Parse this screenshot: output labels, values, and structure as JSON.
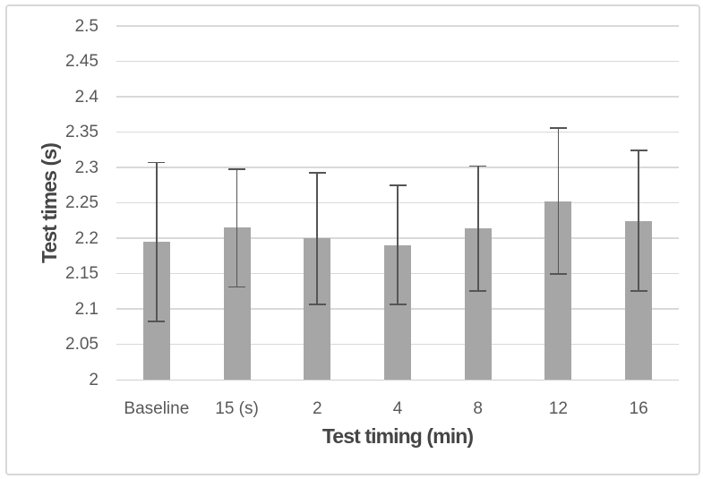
{
  "figure": {
    "background": "#ffffff",
    "border_color": "#d8d8d8"
  },
  "chart_data": {
    "type": "bar",
    "title": "",
    "xlabel": "Test timing (min)",
    "ylabel": "Test times (s)",
    "categories": [
      "Baseline",
      "15 (s)",
      "2",
      "4",
      "8",
      "12",
      "16"
    ],
    "values": [
      2.195,
      2.215,
      2.2,
      2.19,
      2.214,
      2.252,
      2.224
    ],
    "error_high": [
      2.307,
      2.297,
      2.292,
      2.275,
      2.302,
      2.356,
      2.324
    ],
    "error_low": [
      2.082,
      2.131,
      2.106,
      2.106,
      2.125,
      2.149,
      2.125
    ],
    "ylim": [
      2.0,
      2.5
    ],
    "ytick_step": 0.05,
    "ytick_labels": [
      "2",
      "2.05",
      "2.1",
      "2.15",
      "2.2",
      "2.25",
      "2.3",
      "2.35",
      "2.4",
      "2.45",
      "2.5"
    ],
    "grid": true,
    "legend": false,
    "colors": {
      "bar": "#a6a6a6",
      "error_bar": "#555555",
      "gridline": "#d9d9d9",
      "axis_line": "#cfcfcf",
      "tick_label": "#595959",
      "axis_title": "#454545"
    }
  }
}
